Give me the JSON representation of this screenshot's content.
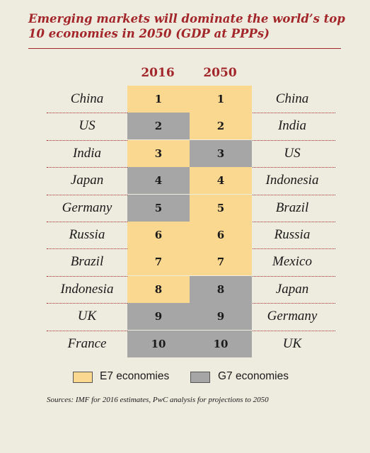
{
  "title": "Emerging markets will dominate the world’s top 10 economies in 2050 (GDP at PPPs)",
  "colors": {
    "E7": "#fad890",
    "G7": "#a6a6a6",
    "accent": "#a3262a"
  },
  "legend": [
    {
      "label": "E7 economies",
      "group": "E7"
    },
    {
      "label": "G7 economies",
      "group": "G7"
    }
  ],
  "source": "Sources: IMF for 2016 estimates, PwC analysis for projections to 2050",
  "chart_data": {
    "type": "table",
    "title": "Emerging markets will dominate the world’s top 10 economies in 2050 (GDP at PPPs)",
    "columns": [
      "2016",
      "2050"
    ],
    "rows": [
      {
        "rank": "1",
        "country_2016": "China",
        "group_2016": "E7",
        "country_2050": "China",
        "group_2050": "E7"
      },
      {
        "rank": "2",
        "country_2016": "US",
        "group_2016": "G7",
        "country_2050": "India",
        "group_2050": "E7"
      },
      {
        "rank": "3",
        "country_2016": "India",
        "group_2016": "E7",
        "country_2050": "US",
        "group_2050": "G7"
      },
      {
        "rank": "4",
        "country_2016": "Japan",
        "group_2016": "G7",
        "country_2050": "Indonesia",
        "group_2050": "E7"
      },
      {
        "rank": "5",
        "country_2016": "Germany",
        "group_2016": "G7",
        "country_2050": "Brazil",
        "group_2050": "E7"
      },
      {
        "rank": "6",
        "country_2016": "Russia",
        "group_2016": "E7",
        "country_2050": "Russia",
        "group_2050": "E7"
      },
      {
        "rank": "7",
        "country_2016": "Brazil",
        "group_2016": "E7",
        "country_2050": "Mexico",
        "group_2050": "E7"
      },
      {
        "rank": "8",
        "country_2016": "Indonesia",
        "group_2016": "E7",
        "country_2050": "Japan",
        "group_2050": "G7"
      },
      {
        "rank": "9",
        "country_2016": "UK",
        "group_2016": "G7",
        "country_2050": "Germany",
        "group_2050": "G7"
      },
      {
        "rank": "10",
        "country_2016": "France",
        "group_2016": "G7",
        "country_2050": "UK",
        "group_2050": "G7"
      }
    ]
  }
}
